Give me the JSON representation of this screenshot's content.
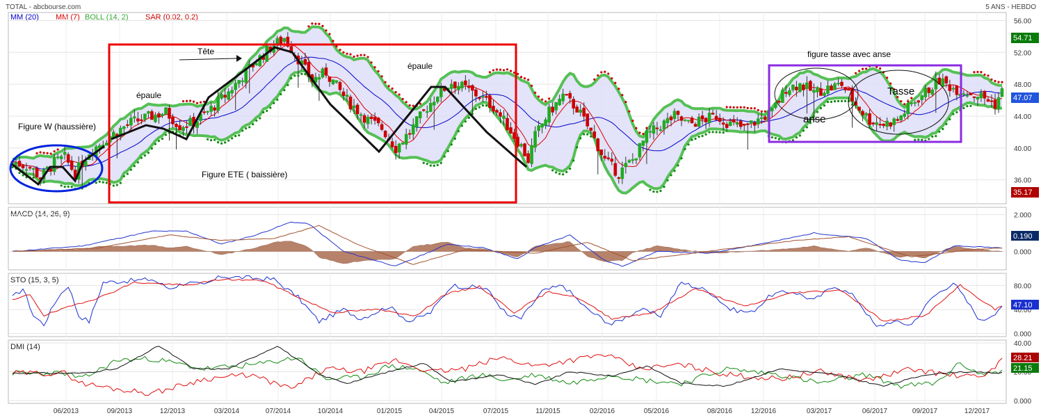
{
  "header": {
    "title": "TOTAL - abcbourse.com",
    "period": "5 ANS - HEBDO"
  },
  "legend": [
    {
      "label": "MM (20)",
      "color": "#0000cc"
    },
    {
      "label": "MM (7)",
      "color": "#dd0000"
    },
    {
      "label": "BOLL (14, 2)",
      "color": "#33aa33"
    },
    {
      "label": "SAR (0.02, 0.2)",
      "color": "#cc0000"
    }
  ],
  "x_ticks": [
    "06/2013",
    "09/2013",
    "12/2013",
    "03/2014",
    "07/2014",
    "10/2014",
    "01/2015",
    "04/2015",
    "07/2015",
    "11/2015",
    "02/2016",
    "05/2016",
    "08/2016",
    "12/2016",
    "03/2017",
    "06/2017",
    "09/2017",
    "12/2017"
  ],
  "annotations": {
    "figure_w": "Figure W (haussière)",
    "epaule_left": "épaule",
    "tete": "Tête",
    "epaule_right": "épaule",
    "figure_ete": "Figure ETE ( baissière)",
    "tasse_title": "figure tasse avec anse",
    "anse": "anse",
    "tasse": "Tasse"
  },
  "colors": {
    "candle_up": "#22aa22",
    "candle_down": "#cc0000",
    "boll_fill": "#dcdcf8",
    "boll_line": "#55c055",
    "ete_box": "#ee0000",
    "w_ellipse": "#0022dd",
    "tasse_box": "#8a2be2",
    "price_tag_high": "#0a7a0a",
    "price_tag_low": "#b00000",
    "price_tag_last": "#2255dd"
  },
  "chart_data": [
    {
      "type": "candlestick",
      "title": "",
      "ylim": [
        33,
        57
      ],
      "yticks": [
        "56.00",
        "52.00",
        "48.00",
        "44.00",
        "40.00",
        "36.00"
      ],
      "price_tags": {
        "high": "54.71",
        "last": "47.07",
        "low": "35.17"
      },
      "series": [
        {
          "name": "MM (20)"
        },
        {
          "name": "MM (7)"
        },
        {
          "name": "BOLL (14, 2)"
        },
        {
          "name": "SAR (0.02, 0.2)"
        }
      ],
      "close_anchors": [
        [
          0,
          38.3
        ],
        [
          5,
          37.6
        ],
        [
          8,
          36.3
        ],
        [
          12,
          38.2
        ],
        [
          15,
          38.8
        ],
        [
          18,
          36.8
        ],
        [
          22,
          39.5
        ],
        [
          28,
          41.5
        ],
        [
          34,
          43.2
        ],
        [
          40,
          44.0
        ],
        [
          44,
          44.5
        ],
        [
          48,
          42.8
        ],
        [
          52,
          43.2
        ],
        [
          56,
          44.5
        ],
        [
          62,
          47.0
        ],
        [
          68,
          50.0
        ],
        [
          74,
          52.6
        ],
        [
          78,
          53.8
        ],
        [
          82,
          51.2
        ],
        [
          86,
          48.5
        ],
        [
          90,
          49.5
        ],
        [
          96,
          46.0
        ],
        [
          102,
          43.5
        ],
        [
          106,
          42.5
        ],
        [
          110,
          40.0
        ],
        [
          114,
          42.0
        ],
        [
          118,
          44.5
        ],
        [
          122,
          46.8
        ],
        [
          126,
          48.2
        ],
        [
          130,
          47.5
        ],
        [
          134,
          46.5
        ],
        [
          138,
          45.2
        ],
        [
          142,
          42.8
        ],
        [
          146,
          40.2
        ],
        [
          148,
          38.5
        ],
        [
          150,
          41.5
        ],
        [
          154,
          44.5
        ],
        [
          158,
          46.5
        ],
        [
          162,
          45.0
        ],
        [
          166,
          42.0
        ],
        [
          170,
          38.5
        ],
        [
          174,
          36.8
        ],
        [
          178,
          38.5
        ],
        [
          182,
          41.5
        ],
        [
          186,
          42.8
        ],
        [
          190,
          44.0
        ],
        [
          194,
          43.0
        ],
        [
          198,
          43.5
        ],
        [
          202,
          44.0
        ],
        [
          206,
          43.0
        ],
        [
          210,
          42.5
        ],
        [
          214,
          43.5
        ],
        [
          218,
          44.5
        ],
        [
          222,
          47.5
        ],
        [
          226,
          48.0
        ],
        [
          230,
          47.0
        ],
        [
          234,
          47.5
        ],
        [
          238,
          48.0
        ],
        [
          242,
          45.5
        ],
        [
          246,
          43.5
        ],
        [
          250,
          43.0
        ],
        [
          254,
          43.5
        ],
        [
          258,
          45.5
        ],
        [
          262,
          47.0
        ],
        [
          266,
          48.5
        ],
        [
          270,
          47.5
        ],
        [
          274,
          47.0
        ],
        [
          278,
          46.5
        ],
        [
          282,
          45.5
        ],
        [
          284,
          47.07
        ]
      ],
      "n_candles": 285
    },
    {
      "type": "line",
      "title": "MACD (14, 26, 9)",
      "ylim": [
        -1,
        2.4
      ],
      "yticks": [
        "2.000",
        "0.000"
      ],
      "value_tag": "0.190",
      "series": [
        {
          "name": "MACD"
        },
        {
          "name": "Signal"
        },
        {
          "name": "Histogram"
        }
      ],
      "macd_anchors": [
        [
          0,
          0.0
        ],
        [
          20,
          0.3
        ],
        [
          40,
          1.1
        ],
        [
          50,
          1.1
        ],
        [
          60,
          0.4
        ],
        [
          70,
          0.9
        ],
        [
          80,
          1.6
        ],
        [
          85,
          1.5
        ],
        [
          95,
          0.0
        ],
        [
          110,
          -0.8
        ],
        [
          120,
          0.0
        ],
        [
          125,
          0.4
        ],
        [
          135,
          0.2
        ],
        [
          145,
          -0.4
        ],
        [
          150,
          0.2
        ],
        [
          160,
          0.9
        ],
        [
          170,
          -0.5
        ],
        [
          175,
          -0.8
        ],
        [
          185,
          0.0
        ],
        [
          200,
          -0.1
        ],
        [
          220,
          0.6
        ],
        [
          230,
          1.0
        ],
        [
          245,
          0.7
        ],
        [
          255,
          -0.5
        ],
        [
          262,
          -0.6
        ],
        [
          270,
          0.3
        ],
        [
          284,
          0.2
        ]
      ],
      "signal_anchors": [
        [
          0,
          0.0
        ],
        [
          25,
          0.2
        ],
        [
          45,
          0.9
        ],
        [
          60,
          0.6
        ],
        [
          75,
          0.7
        ],
        [
          88,
          1.4
        ],
        [
          100,
          0.3
        ],
        [
          115,
          -0.7
        ],
        [
          130,
          0.1
        ],
        [
          150,
          -0.1
        ],
        [
          165,
          0.5
        ],
        [
          178,
          -0.5
        ],
        [
          195,
          -0.1
        ],
        [
          225,
          0.6
        ],
        [
          240,
          0.8
        ],
        [
          258,
          -0.3
        ],
        [
          275,
          0.1
        ],
        [
          284,
          0.2
        ]
      ]
    },
    {
      "type": "line",
      "title": "STO (15, 3, 5)",
      "ylim": [
        -5,
        100
      ],
      "yticks": [
        "80.00",
        "40.00",
        "0.000"
      ],
      "value_tag": "47.10",
      "series": [
        {
          "name": "%K"
        },
        {
          "name": "%D"
        }
      ],
      "k_anchors": [
        [
          0,
          60
        ],
        [
          3,
          75
        ],
        [
          6,
          30
        ],
        [
          9,
          15
        ],
        [
          13,
          60
        ],
        [
          16,
          80
        ],
        [
          19,
          30
        ],
        [
          22,
          20
        ],
        [
          26,
          85
        ],
        [
          40,
          90
        ],
        [
          45,
          75
        ],
        [
          50,
          85
        ],
        [
          55,
          80
        ],
        [
          60,
          95
        ],
        [
          75,
          90
        ],
        [
          82,
          60
        ],
        [
          88,
          20
        ],
        [
          95,
          40
        ],
        [
          100,
          25
        ],
        [
          108,
          45
        ],
        [
          114,
          20
        ],
        [
          120,
          35
        ],
        [
          126,
          80
        ],
        [
          136,
          75
        ],
        [
          142,
          30
        ],
        [
          146,
          25
        ],
        [
          152,
          70
        ],
        [
          158,
          80
        ],
        [
          165,
          40
        ],
        [
          172,
          15
        ],
        [
          180,
          40
        ],
        [
          186,
          30
        ],
        [
          192,
          85
        ],
        [
          200,
          70
        ],
        [
          206,
          40
        ],
        [
          212,
          35
        ],
        [
          218,
          65
        ],
        [
          224,
          70
        ],
        [
          230,
          55
        ],
        [
          236,
          80
        ],
        [
          242,
          60
        ],
        [
          248,
          10
        ],
        [
          252,
          20
        ],
        [
          258,
          15
        ],
        [
          264,
          60
        ],
        [
          270,
          85
        ],
        [
          278,
          20
        ],
        [
          282,
          35
        ],
        [
          284,
          47
        ]
      ],
      "d_anchors": [
        [
          0,
          55
        ],
        [
          5,
          65
        ],
        [
          9,
          30
        ],
        [
          14,
          40
        ],
        [
          19,
          50
        ],
        [
          25,
          60
        ],
        [
          35,
          85
        ],
        [
          50,
          80
        ],
        [
          60,
          90
        ],
        [
          72,
          88
        ],
        [
          84,
          55
        ],
        [
          92,
          35
        ],
        [
          104,
          40
        ],
        [
          116,
          30
        ],
        [
          124,
          65
        ],
        [
          134,
          78
        ],
        [
          144,
          35
        ],
        [
          154,
          70
        ],
        [
          162,
          60
        ],
        [
          172,
          25
        ],
        [
          184,
          35
        ],
        [
          196,
          75
        ],
        [
          210,
          45
        ],
        [
          224,
          68
        ],
        [
          238,
          72
        ],
        [
          250,
          20
        ],
        [
          262,
          30
        ],
        [
          272,
          80
        ],
        [
          282,
          40
        ],
        [
          284,
          46
        ]
      ]
    },
    {
      "type": "line",
      "title": "DMI (14)",
      "ylim": [
        -2,
        42
      ],
      "yticks": [
        "40.00",
        "20.00",
        "0.000"
      ],
      "value_tags": {
        "di_minus": "28.21",
        "di_plus": "21.15"
      },
      "series": [
        {
          "name": "DI+"
        },
        {
          "name": "DI-"
        },
        {
          "name": "ADX"
        }
      ],
      "plus_anchors": [
        [
          0,
          19
        ],
        [
          15,
          19
        ],
        [
          20,
          15
        ],
        [
          30,
          28
        ],
        [
          40,
          29
        ],
        [
          55,
          22
        ],
        [
          70,
          25
        ],
        [
          82,
          30
        ],
        [
          90,
          15
        ],
        [
          100,
          16
        ],
        [
          108,
          24
        ],
        [
          116,
          22
        ],
        [
          124,
          12
        ],
        [
          134,
          18
        ],
        [
          142,
          14
        ],
        [
          150,
          18
        ],
        [
          160,
          12
        ],
        [
          172,
          18
        ],
        [
          182,
          14
        ],
        [
          192,
          12
        ],
        [
          205,
          22
        ],
        [
          220,
          18
        ],
        [
          232,
          12
        ],
        [
          245,
          18
        ],
        [
          255,
          10
        ],
        [
          265,
          12
        ],
        [
          272,
          26
        ],
        [
          278,
          18
        ],
        [
          284,
          21
        ]
      ],
      "minus_anchors": [
        [
          0,
          19
        ],
        [
          15,
          19
        ],
        [
          20,
          12
        ],
        [
          30,
          8
        ],
        [
          40,
          5
        ],
        [
          55,
          15
        ],
        [
          68,
          18
        ],
        [
          80,
          8
        ],
        [
          90,
          22
        ],
        [
          100,
          20
        ],
        [
          110,
          28
        ],
        [
          120,
          20
        ],
        [
          130,
          22
        ],
        [
          140,
          30
        ],
        [
          150,
          24
        ],
        [
          160,
          28
        ],
        [
          170,
          32
        ],
        [
          180,
          22
        ],
        [
          192,
          25
        ],
        [
          205,
          18
        ],
        [
          220,
          15
        ],
        [
          232,
          20
        ],
        [
          245,
          14
        ],
        [
          258,
          22
        ],
        [
          268,
          18
        ],
        [
          278,
          16
        ],
        [
          284,
          28
        ]
      ],
      "adx_anchors": [
        [
          0,
          19
        ],
        [
          20,
          19
        ],
        [
          30,
          22
        ],
        [
          42,
          38
        ],
        [
          52,
          22
        ],
        [
          62,
          22
        ],
        [
          76,
          38
        ],
        [
          88,
          18
        ],
        [
          96,
          12
        ],
        [
          108,
          20
        ],
        [
          118,
          26
        ],
        [
          126,
          13
        ],
        [
          140,
          18
        ],
        [
          150,
          11
        ],
        [
          160,
          20
        ],
        [
          172,
          17
        ],
        [
          182,
          24
        ],
        [
          192,
          12
        ],
        [
          205,
          10
        ],
        [
          220,
          22
        ],
        [
          236,
          18
        ],
        [
          250,
          10
        ],
        [
          262,
          18
        ],
        [
          272,
          20
        ],
        [
          284,
          19
        ]
      ]
    }
  ]
}
